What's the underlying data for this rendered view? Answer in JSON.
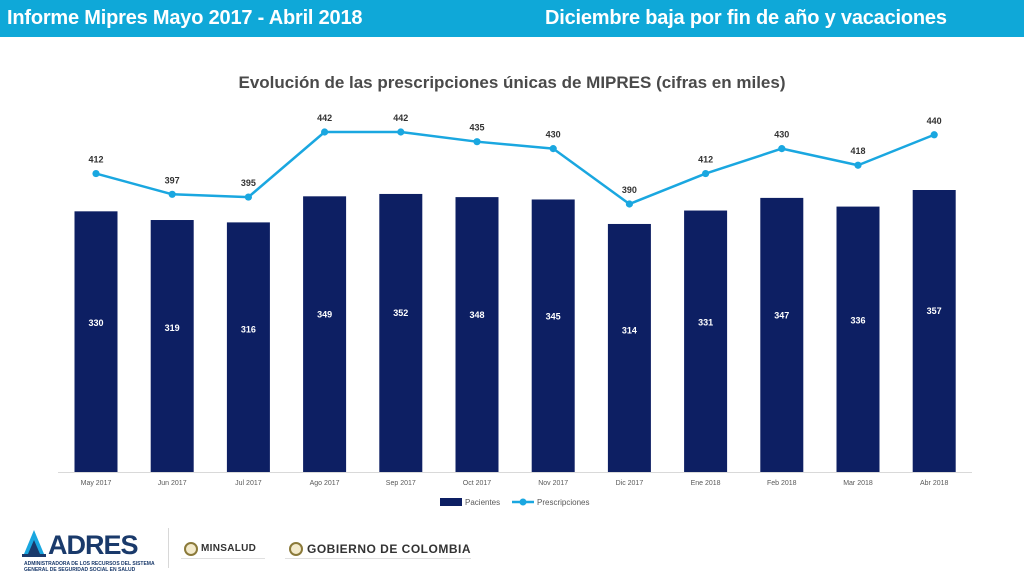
{
  "header": {
    "title_left": "Informe Mipres Mayo 2017 - Abril 2018",
    "title_right": "Diciembre baja por fin de año y vacaciones"
  },
  "colors": {
    "header_bg": "#0fa8d8",
    "bar": "#0d1f63",
    "line": "#1aa7e0"
  },
  "chart_data": {
    "type": "bar",
    "title": "Evolución de las prescripciones únicas de MIPRES (cifras en miles)",
    "categories": [
      "May 2017",
      "Jun 2017",
      "Jul 2017",
      "Ago 2017",
      "Sep 2017",
      "Oct 2017",
      "Nov 2017",
      "Dic 2017",
      "Ene 2018",
      "Feb 2018",
      "Mar 2018",
      "Abr 2018"
    ],
    "series": [
      {
        "name": "Pacientes",
        "type": "bar",
        "values": [
          330,
          319,
          316,
          349,
          352,
          348,
          345,
          314,
          331,
          347,
          336,
          357
        ]
      },
      {
        "name": "Prescripciones",
        "type": "line",
        "values": [
          412,
          397,
          395,
          442,
          442,
          435,
          430,
          390,
          412,
          430,
          418,
          440
        ]
      }
    ],
    "legend_position": "bottom",
    "grid": false
  },
  "footer": {
    "logo_name": "ADRES",
    "logo_sub1": "ADMINISTRADORA DE LOS RECURSOS DEL SISTEMA",
    "logo_sub2": "GENERAL DE SEGURIDAD SOCIAL EN SALUD",
    "minsalud": "MINSALUD",
    "gobierno": "GOBIERNO DE COLOMBIA"
  }
}
